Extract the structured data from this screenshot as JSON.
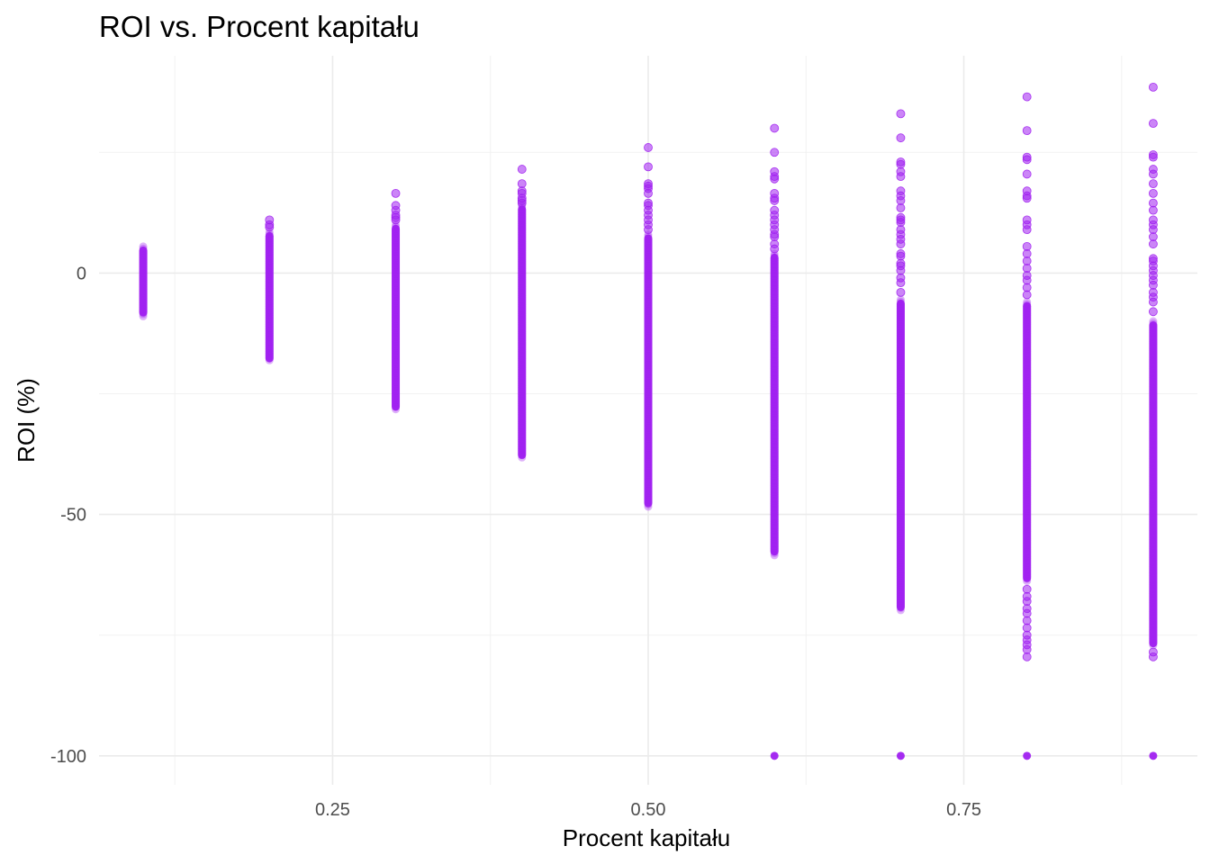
{
  "chart_data": {
    "type": "scatter",
    "title": "ROI vs. Procent kapitału",
    "xlabel": "Procent kapitału",
    "ylabel": "ROI (%)",
    "xlim": [
      0.065,
      0.935
    ],
    "ylim": [
      -106,
      45
    ],
    "x_ticks": [
      0.25,
      0.5,
      0.75
    ],
    "x_tick_labels": [
      "0.25",
      "0.50",
      "0.75"
    ],
    "x_minor_ticks": [
      0.125,
      0.375,
      0.625,
      0.875
    ],
    "y_ticks": [
      0,
      -50,
      -100
    ],
    "y_tick_labels": [
      "0",
      "-50",
      "-100"
    ],
    "y_minor_ticks": [
      25,
      -25,
      -75
    ],
    "grid": true,
    "legend": "none",
    "point_color": "#A020F0",
    "series": [
      {
        "x": 0.1,
        "dense_range": [
          -9,
          5.5
        ],
        "outliers": [],
        "total_loss": false
      },
      {
        "x": 0.2,
        "dense_range": [
          -18.5,
          8.5
        ],
        "outliers": [
          11,
          10,
          9.5
        ],
        "total_loss": false
      },
      {
        "x": 0.3,
        "dense_range": [
          -28.5,
          10
        ],
        "outliers": [
          16.5,
          14,
          13,
          12,
          11.5,
          11
        ],
        "total_loss": false
      },
      {
        "x": 0.4,
        "dense_range": [
          -38.5,
          14
        ],
        "outliers": [
          21.5,
          18.5,
          17,
          16.5,
          15.5,
          15,
          14.5
        ],
        "total_loss": false
      },
      {
        "x": 0.5,
        "dense_range": [
          -48.5,
          8
        ],
        "outliers": [
          26,
          22,
          18.5,
          18,
          17.5,
          16.5,
          14.5,
          14,
          13,
          12,
          11,
          10,
          9
        ],
        "total_loss": false
      },
      {
        "x": 0.6,
        "dense_range": [
          -58.5,
          4
        ],
        "outliers": [
          30,
          25,
          21,
          20,
          19.5,
          16.5,
          15.5,
          15,
          13,
          12,
          11,
          10,
          9,
          8,
          7.5,
          6,
          5
        ],
        "total_loss": true
      },
      {
        "x": 0.7,
        "dense_range": [
          -70,
          -5.5
        ],
        "outliers": [
          33,
          28,
          23,
          22.5,
          21,
          20,
          17,
          16,
          15,
          13.5,
          11.5,
          11,
          10.5,
          9,
          8,
          7,
          6,
          4,
          3.5,
          2,
          1.5,
          0.5,
          -1,
          -2,
          -4
        ],
        "total_loss": true
      },
      {
        "x": 0.8,
        "dense_range": [
          -64,
          -6
        ],
        "outliers": [
          36.5,
          29.5,
          24,
          23.5,
          20.5,
          17,
          16,
          15.5,
          11,
          10,
          9,
          5.5,
          4,
          2.5,
          1,
          -0.5,
          -1.5,
          -3,
          -4.5,
          -65.5,
          -67,
          -68,
          -69.5,
          -70.5,
          -72,
          -73.5,
          -75,
          -76,
          -77,
          -78,
          -79.5
        ],
        "total_loss": true
      },
      {
        "x": 0.9,
        "dense_range": [
          -77.5,
          -10
        ],
        "outliers": [
          38.5,
          31,
          24.5,
          24,
          21.5,
          20.5,
          18.5,
          16.5,
          14.5,
          13,
          11,
          10,
          9,
          7.5,
          6,
          3,
          2.5,
          1.5,
          0.5,
          -0.5,
          -1.5,
          -2.5,
          -4,
          -5,
          -6,
          -8,
          -78.5,
          -79.5
        ],
        "total_loss": true
      }
    ]
  }
}
